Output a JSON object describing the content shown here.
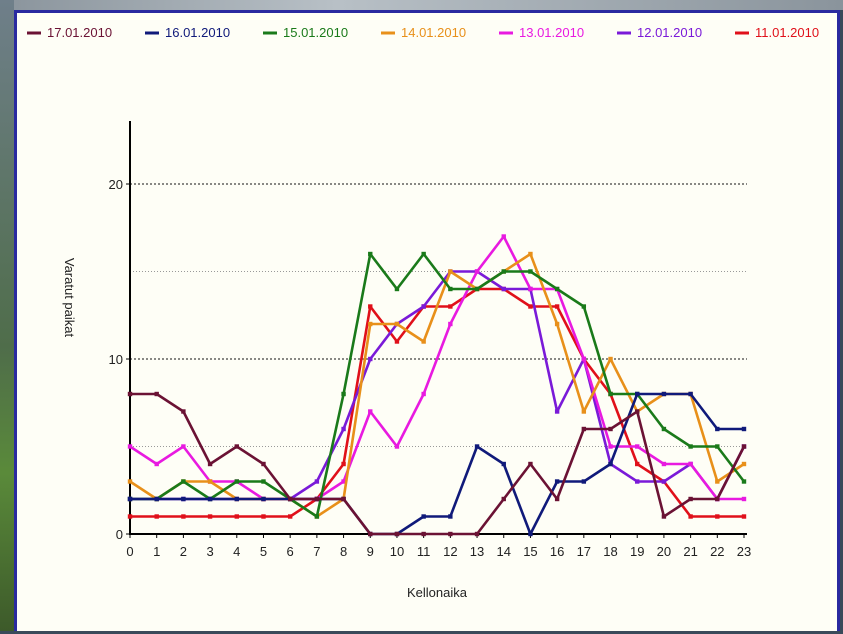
{
  "chart_data": {
    "type": "line",
    "title": "",
    "xlabel": "Kellonaika",
    "ylabel": "Varatut paikat",
    "x": [
      0,
      1,
      2,
      3,
      4,
      5,
      6,
      7,
      8,
      9,
      10,
      11,
      12,
      13,
      14,
      15,
      16,
      17,
      18,
      19,
      20,
      21,
      22,
      23
    ],
    "xlim": [
      0,
      23
    ],
    "ylim": [
      0,
      20
    ],
    "yticks": [
      0,
      10,
      20
    ],
    "grid": "horizontal dotted at 5, 10, 15, 20",
    "legend_position": "top",
    "series": [
      {
        "name": "17.01.2010",
        "color": "#6b1234",
        "values": [
          8,
          8,
          7,
          4,
          5,
          4,
          2,
          2,
          2,
          0,
          0,
          0,
          0,
          0,
          2,
          4,
          2,
          6,
          6,
          7,
          1,
          2,
          2,
          5
        ]
      },
      {
        "name": "16.01.2010",
        "color": "#101a7a",
        "values": [
          2,
          2,
          2,
          2,
          2,
          2,
          2,
          2,
          2,
          0,
          0,
          1,
          1,
          5,
          4,
          0,
          3,
          3,
          4,
          8,
          8,
          8,
          6,
          6
        ]
      },
      {
        "name": "15.01.2010",
        "color": "#1a7a1a",
        "values": [
          2,
          2,
          3,
          2,
          3,
          3,
          2,
          1,
          8,
          16,
          14,
          16,
          14,
          14,
          15,
          15,
          14,
          13,
          8,
          8,
          6,
          5,
          5,
          3
        ]
      },
      {
        "name": "14.01.2010",
        "color": "#e8901a",
        "values": [
          3,
          2,
          3,
          3,
          2,
          2,
          2,
          1,
          2,
          12,
          12,
          11,
          15,
          14,
          15,
          16,
          12,
          7,
          10,
          7,
          8,
          8,
          3,
          4
        ]
      },
      {
        "name": "13.01.2010",
        "color": "#e81ae0",
        "values": [
          5,
          4,
          5,
          3,
          3,
          2,
          2,
          2,
          3,
          7,
          5,
          8,
          12,
          15,
          17,
          14,
          14,
          10,
          5,
          5,
          4,
          4,
          2,
          2
        ]
      },
      {
        "name": "12.01.2010",
        "color": "#7a1ad8",
        "values": [
          2,
          2,
          2,
          2,
          2,
          2,
          2,
          3,
          6,
          10,
          12,
          13,
          15,
          15,
          14,
          14,
          7,
          10,
          4,
          3,
          3,
          4,
          2,
          5
        ]
      },
      {
        "name": "11.01.2010",
        "color": "#e0101a",
        "values": [
          1,
          1,
          1,
          1,
          1,
          1,
          1,
          2,
          4,
          13,
          11,
          13,
          13,
          14,
          14,
          13,
          13,
          10,
          8,
          4,
          3,
          1,
          1,
          1
        ]
      }
    ]
  }
}
